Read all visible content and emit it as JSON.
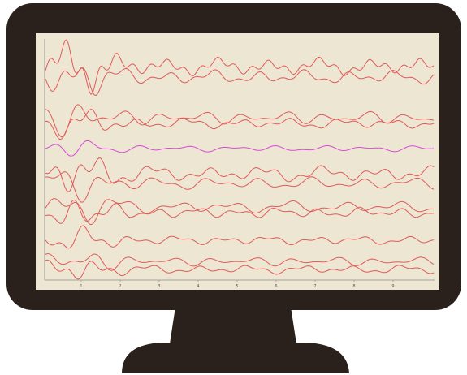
{
  "screen": {
    "x_ticks": [
      "1",
      "2",
      "3",
      "4",
      "5",
      "6",
      "7",
      "8",
      "9"
    ]
  }
}
